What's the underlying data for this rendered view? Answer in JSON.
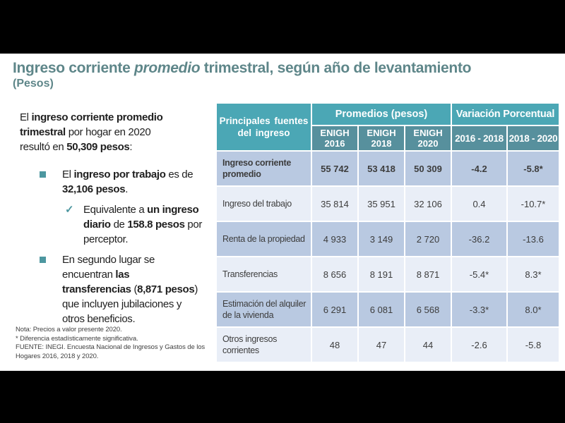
{
  "colors": {
    "title_teal": "#5E8689",
    "header_teal": "#4BA7B5",
    "subheader_teal": "#57909D",
    "row_dark_blue": "#B9C9E1",
    "row_light_blue": "#E9EEF7",
    "bullet_accent": "#4D97A0",
    "letterbox": "#000000"
  },
  "title": {
    "pre": "Ingreso corriente ",
    "italic": "promedio",
    "post": " trimestral, según año de levantamiento",
    "subtitle": "(Pesos)"
  },
  "body": {
    "intro": {
      "segments": [
        {
          "t": "El ",
          "b": false
        },
        {
          "t": "ingreso corriente promedio\ntrimestral",
          "b": true
        },
        {
          "t": " por hogar en 2020\nresultó en ",
          "b": false
        },
        {
          "t": "50,309 pesos",
          "b": true
        },
        {
          "t": ":",
          "b": false
        }
      ]
    },
    "bullet1": {
      "segments": [
        {
          "t": "El ",
          "b": false
        },
        {
          "t": "ingreso por trabajo",
          "b": true
        },
        {
          "t": " es de\n",
          "b": false
        },
        {
          "t": "32,106 pesos",
          "b": true
        },
        {
          "t": ".",
          "b": false
        }
      ]
    },
    "check1": {
      "marker": "✓",
      "segments": [
        {
          "t": "Equivalente a ",
          "b": false
        },
        {
          "t": "un ingreso\ndiario",
          "b": true
        },
        {
          "t": " de ",
          "b": false
        },
        {
          "t": "158.8 pesos",
          "b": true
        },
        {
          "t": " por\nperceptor.",
          "b": false
        }
      ]
    },
    "bullet2": {
      "segments": [
        {
          "t": "En segundo lugar se\nencuentran ",
          "b": false
        },
        {
          "t": "las\ntransferencias",
          "b": true
        },
        {
          "t": " (",
          "b": false
        },
        {
          "t": "8,871 pesos",
          "b": true
        },
        {
          "t": ")\nque incluyen jubilaciones y\notros beneficios.",
          "b": false
        }
      ]
    }
  },
  "notes": [
    "Nota: Precios a valor presente 2020.",
    "* Diferencia estadísticamente significativa.",
    "FUENTE: INEGI.  Encuesta Nacional de Ingresos y Gastos de los\nHogares 2016, 2018 y 2020."
  ],
  "table": {
    "col_header": "Principales fuentes\ndel ingreso",
    "group_headers": [
      "Promedios (pesos)",
      "Variación Porcentual"
    ],
    "sub_headers": [
      "ENIGH\n2016",
      "ENIGH\n2018",
      "ENIGH\n2020",
      "2016 - 2018",
      "2018 - 2020"
    ],
    "rows": [
      {
        "label": "Ingreso corriente\npromedio",
        "values": [
          "55 742",
          "53 418",
          "50 309",
          "-4.2",
          "-5.8*"
        ]
      },
      {
        "label": "Ingreso del trabajo",
        "values": [
          "35 814",
          "35 951",
          "32 106",
          "0.4",
          "-10.7*"
        ]
      },
      {
        "label": "Renta de la propiedad",
        "values": [
          "4 933",
          "3 149",
          "2 720",
          "-36.2",
          "-13.6"
        ]
      },
      {
        "label": "Transferencias",
        "values": [
          "8 656",
          "8 191",
          "8 871",
          "-5.4*",
          "8.3*"
        ]
      },
      {
        "label": "Estimación del alquiler\nde la vivienda",
        "values": [
          "6 291",
          "6 081",
          "6 568",
          "-3.3*",
          "8.0*"
        ]
      },
      {
        "label": "Otros ingresos\ncorrientes",
        "values": [
          "48",
          "47",
          "44",
          "-2.6",
          "-5.8"
        ]
      }
    ]
  },
  "chart_data": {
    "type": "table",
    "title": "Ingreso corriente promedio trimestral, según año de levantamiento (Pesos)",
    "categories": [
      "ENIGH 2016",
      "ENIGH 2018",
      "ENIGH 2020",
      "2016 - 2018",
      "2018 - 2020"
    ],
    "series": [
      {
        "name": "Ingreso corriente promedio",
        "values": [
          55742,
          53418,
          50309,
          -4.2,
          -5.8
        ]
      },
      {
        "name": "Ingreso del trabajo",
        "values": [
          35814,
          35951,
          32106,
          0.4,
          -10.7
        ]
      },
      {
        "name": "Renta de la propiedad",
        "values": [
          4933,
          3149,
          2720,
          -36.2,
          -13.6
        ]
      },
      {
        "name": "Transferencias",
        "values": [
          8656,
          8191,
          8871,
          -5.4,
          8.3
        ]
      },
      {
        "name": "Estimación del alquiler de la vivienda",
        "values": [
          6291,
          6081,
          6568,
          -3.3,
          8.0
        ]
      },
      {
        "name": "Otros ingresos corrientes",
        "values": [
          48,
          47,
          44,
          -2.6,
          -5.8
        ]
      }
    ]
  }
}
